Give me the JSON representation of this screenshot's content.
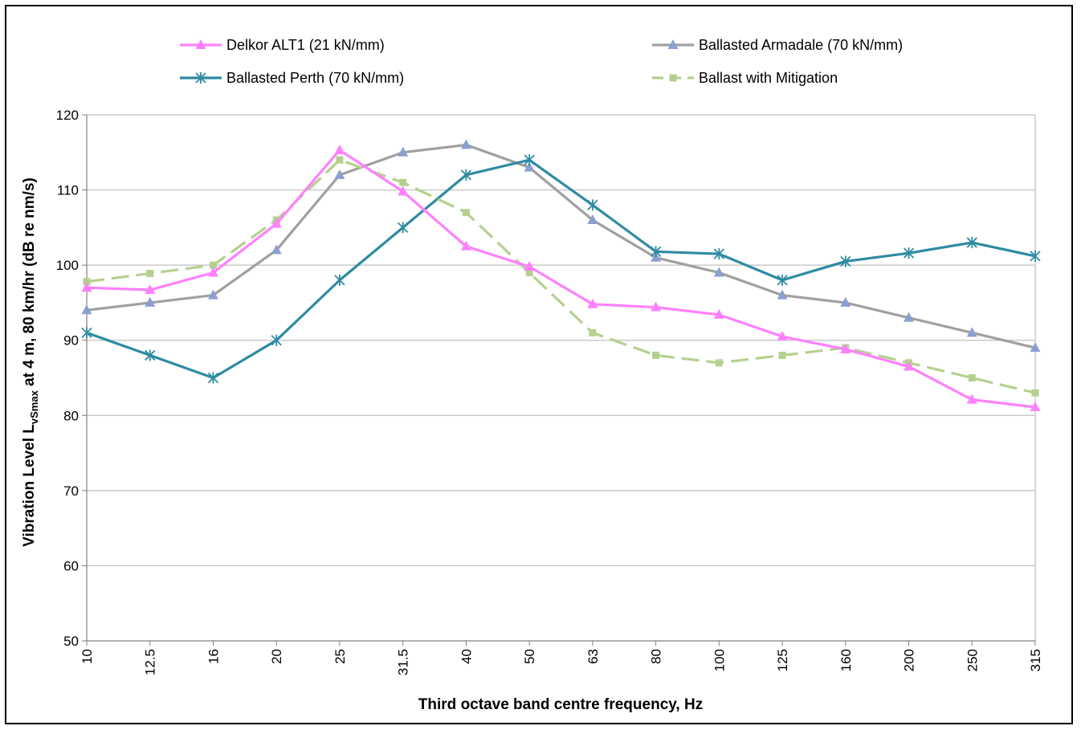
{
  "chart_data": {
    "type": "line",
    "title": "",
    "xlabel": "Third octave band centre frequency,  Hz",
    "ylabel_parts": [
      "Vibration Level  L",
      "vSmax",
      " at 4 m, 80 km/hr (dB re nm/s)"
    ],
    "categories": [
      "10",
      "12.5",
      "16",
      "20",
      "25",
      "31.5",
      "40",
      "50",
      "63",
      "80",
      "100",
      "125",
      "160",
      "200",
      "250",
      "315"
    ],
    "ylim": [
      50,
      120
    ],
    "yticks": [
      "50",
      "60",
      "70",
      "80",
      "90",
      "100",
      "110",
      "120"
    ],
    "grid": true,
    "legend_position": "top",
    "series": [
      {
        "name": "Delkor ALT1 (21 kN/mm)",
        "color": "#ff80ff",
        "marker": "triangle",
        "dash": "solid",
        "values": [
          97,
          96.7,
          99,
          105.5,
          115.3,
          109.8,
          102.5,
          99.8,
          94.8,
          94.4,
          93.4,
          90.5,
          88.8,
          86.5,
          82.1,
          81.1
        ]
      },
      {
        "name": "Ballasted Armadale (70 kN/mm)",
        "color": "#a0a0a0",
        "marker": "triangle-blue",
        "dash": "solid",
        "values": [
          94,
          95,
          96,
          102,
          112,
          115,
          116,
          113,
          106,
          101,
          99,
          96,
          95,
          93,
          91,
          89
        ]
      },
      {
        "name": "Ballasted Perth (70 kN/mm)",
        "color": "#2e8ba2",
        "marker": "star",
        "dash": "solid",
        "values": [
          91,
          88,
          85,
          90,
          98,
          105,
          112,
          114,
          108,
          101.8,
          101.5,
          98,
          100.5,
          101.6,
          103,
          101.2
        ]
      },
      {
        "name": "Ballast with Mitigation",
        "color": "#b5d08e",
        "marker": "square",
        "dash": "dashed",
        "values": [
          97.8,
          98.9,
          100,
          106,
          114,
          111,
          107,
          99,
          91,
          88,
          87,
          88,
          89,
          87,
          85,
          83
        ]
      }
    ]
  }
}
